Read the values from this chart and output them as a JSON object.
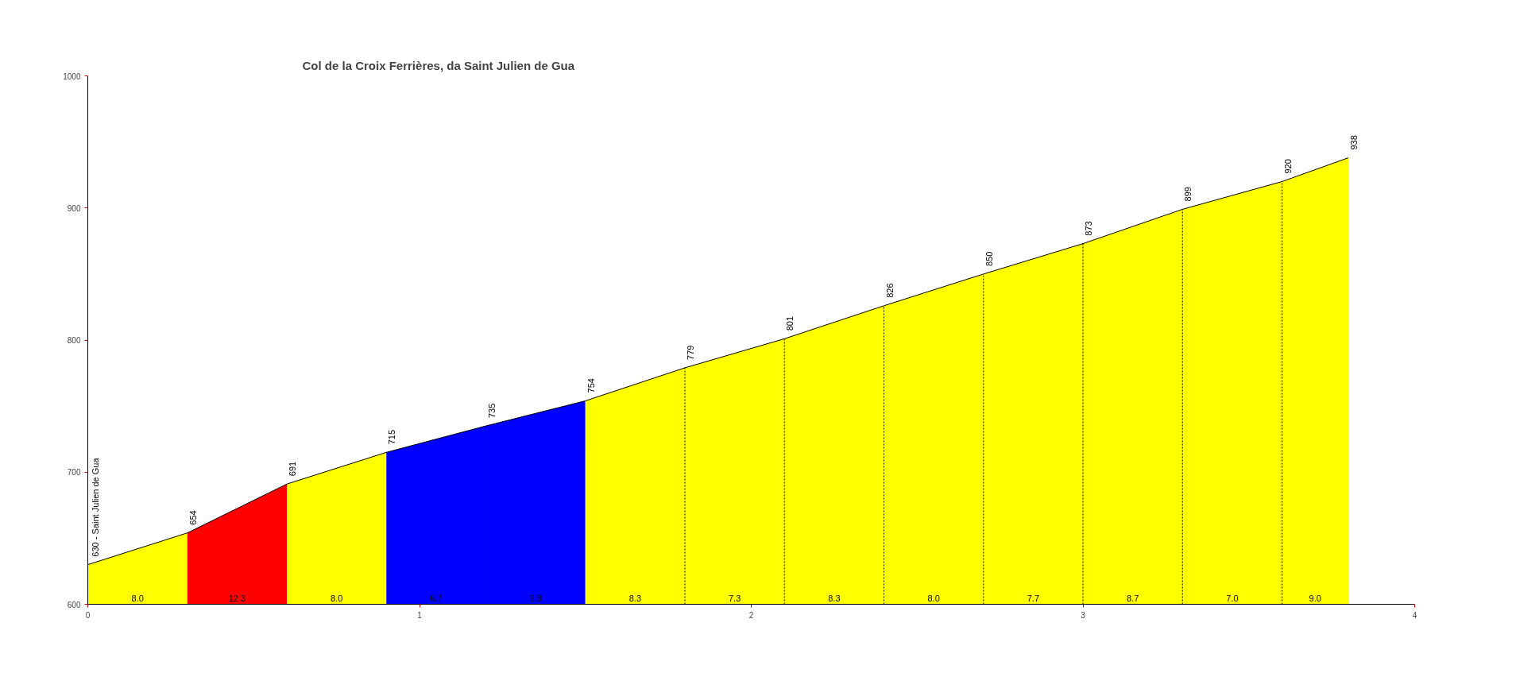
{
  "chart_data": {
    "type": "area",
    "title": "Col de la Croix Ferrières, da Saint Julien de Gua",
    "series": [
      {
        "color": "#ffff00",
        "x": [
          0,
          0.3
        ],
        "values": [
          630,
          654
        ],
        "value_labels": [
          "630 - Saint Julien de Gua",
          null
        ]
      },
      {
        "color": "#ff0000",
        "x": [
          0.3,
          0.6
        ],
        "values": [
          654,
          691
        ],
        "value_labels": [
          "654",
          null
        ]
      },
      {
        "color": "#ffff00",
        "x": [
          0.6,
          0.9
        ],
        "values": [
          691,
          715
        ],
        "value_labels": [
          "691",
          null
        ]
      },
      {
        "color": "#0000ff",
        "x": [
          0.9,
          1.2,
          1.5
        ],
        "values": [
          715,
          735,
          754
        ],
        "value_labels": [
          "715",
          "735",
          null
        ]
      },
      {
        "color": "#ffff00",
        "x": [
          1.5,
          1.8,
          2.1,
          2.4,
          2.7,
          3.0,
          3.3,
          3.6,
          3.8
        ],
        "values": [
          754,
          779,
          801,
          826,
          850,
          873,
          899,
          920,
          938
        ],
        "value_labels": [
          "754",
          "779",
          "801",
          "826",
          "850",
          "873",
          "899",
          "920",
          "938"
        ]
      }
    ],
    "annotations": [
      "8.0",
      "12.3",
      "8.0",
      "6.7",
      "6.3",
      "8.3",
      "7.3",
      "8.3",
      "8.0",
      "7.7",
      "8.7",
      "7.0",
      "9.0"
    ],
    "xlim": [
      0,
      4
    ],
    "xticks": [
      0,
      1,
      2,
      3,
      4
    ],
    "ylim": [
      600,
      1000
    ],
    "yticks": [
      600,
      700,
      800,
      900,
      1000
    ],
    "line_style": "solid"
  }
}
